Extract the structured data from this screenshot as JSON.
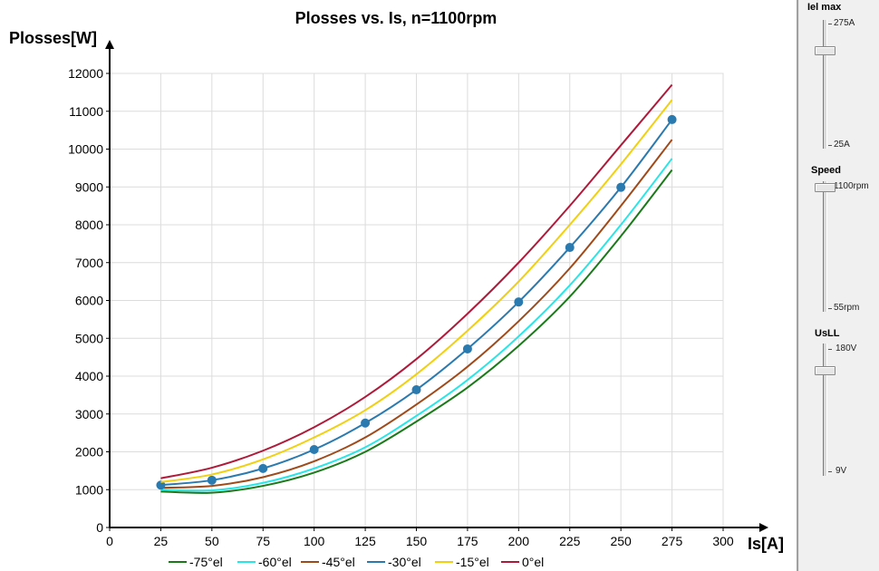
{
  "chart_data": {
    "type": "line",
    "title": "Plosses vs. Is, n=1100rpm",
    "xlabel": "Is[A]",
    "ylabel": "Plosses[W]",
    "xlim": [
      0,
      300
    ],
    "ylim": [
      0,
      12000
    ],
    "xticks": [
      "0",
      "25",
      "50",
      "75",
      "100",
      "125",
      "150",
      "175",
      "200",
      "225",
      "250",
      "275",
      "300"
    ],
    "yticks": [
      "0",
      "1000",
      "2000",
      "3000",
      "4000",
      "5000",
      "6000",
      "7000",
      "8000",
      "9000",
      "10000",
      "11000",
      "12000"
    ],
    "grid": true,
    "legend_position": "bottom",
    "x": [
      25,
      50,
      75,
      100,
      125,
      150,
      175,
      200,
      225,
      250,
      275
    ],
    "series": [
      {
        "name": "-75°el",
        "color": "#1a7a1a",
        "markers": false,
        "values": [
          950,
          920,
          1100,
          1450,
          2000,
          2800,
          3700,
          4800,
          6100,
          7700,
          9450
        ]
      },
      {
        "name": "-60°el",
        "color": "#29e6e6",
        "markers": false,
        "values": [
          1000,
          980,
          1180,
          1560,
          2120,
          2950,
          3900,
          5050,
          6400,
          8000,
          9750
        ]
      },
      {
        "name": "-45°el",
        "color": "#a04a1a",
        "markers": false,
        "values": [
          1050,
          1100,
          1330,
          1750,
          2380,
          3250,
          4250,
          5450,
          6850,
          8500,
          10250
        ]
      },
      {
        "name": "-30°el",
        "color": "#2a7ab0",
        "markers": true,
        "values": [
          1120,
          1250,
          1560,
          2060,
          2760,
          3640,
          4720,
          5960,
          7400,
          8990,
          10780
        ]
      },
      {
        "name": "-15°el",
        "color": "#f0d010",
        "markers": false,
        "values": [
          1200,
          1400,
          1800,
          2380,
          3100,
          4050,
          5200,
          6500,
          8000,
          9600,
          11300
        ]
      },
      {
        "name": "0°el",
        "color": "#b01a3a",
        "markers": false,
        "values": [
          1300,
          1580,
          2030,
          2650,
          3450,
          4450,
          5650,
          7000,
          8500,
          10100,
          11700
        ]
      }
    ]
  },
  "controls": {
    "iel_max": {
      "label": "Iel  max",
      "max_label": "275A",
      "min_label": "25A",
      "value_fraction": 0.78
    },
    "speed": {
      "label": "Speed",
      "max_label": "1100rpm",
      "min_label": "55rpm",
      "value_fraction": 1.0
    },
    "usll": {
      "label": "UsLL",
      "max_label": "180V",
      "min_label": "9V",
      "value_fraction": 0.83
    }
  }
}
